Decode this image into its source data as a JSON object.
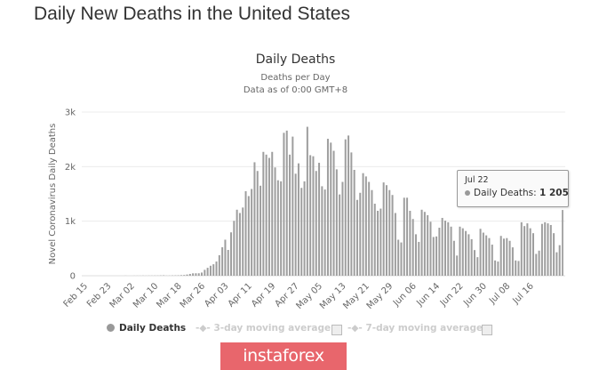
{
  "page_title": "Daily New Deaths in the United States",
  "tooltip": {
    "date": "Jul 22",
    "series": "Daily Deaths",
    "value_text": "1 205"
  },
  "legend": {
    "items": [
      {
        "label": "Daily Deaths",
        "active": true
      },
      {
        "label": "3-day moving average",
        "active": false
      },
      {
        "label": "7-day moving average",
        "active": false
      }
    ]
  },
  "brand": "instaforex",
  "colors": {
    "bar": "#9e9e9e",
    "grid": "#e6e6e6",
    "brand": "#e8666c"
  },
  "chart_data": {
    "type": "bar",
    "title": "Daily Deaths",
    "subtitle": "Deaths per Day",
    "subtitle2": "Data as of 0:00 GMT+8",
    "xlabel": "",
    "ylabel": "Novel Coronavirus Daily Deaths",
    "ylim": [
      0,
      3000
    ],
    "yticks": [
      0,
      1000,
      2000,
      3000
    ],
    "ytick_labels": [
      "0",
      "1k",
      "2k",
      "3k"
    ],
    "grid": true,
    "legend_position": "bottom",
    "xtick_labels": [
      "Feb 15",
      "Feb 23",
      "Mar 02",
      "Mar 10",
      "Mar 18",
      "Mar 26",
      "Apr 03",
      "Apr 11",
      "Apr 19",
      "Apr 27",
      "May 05",
      "May 13",
      "May 21",
      "May 29",
      "Jun 06",
      "Jun 14",
      "Jun 22",
      "Jun 30",
      "Jul 08",
      "Jul 16"
    ],
    "x_start": "Feb 15",
    "x_end": "Jul 22",
    "series": [
      {
        "name": "Daily Deaths",
        "values": [
          0,
          0,
          0,
          0,
          0,
          0,
          0,
          0,
          0,
          0,
          0,
          0,
          0,
          0,
          1,
          0,
          0,
          1,
          1,
          1,
          2,
          1,
          2,
          2,
          3,
          3,
          5,
          7,
          2,
          3,
          5,
          6,
          7,
          11,
          13,
          22,
          33,
          44,
          45,
          45,
          58,
          108,
          145,
          183,
          210,
          260,
          376,
          522,
          660,
          473,
          795,
          1006,
          1210,
          1150,
          1250,
          1549,
          1460,
          1590,
          2080,
          1920,
          1650,
          2270,
          2220,
          2160,
          2270,
          1985,
          1750,
          1730,
          2620,
          2660,
          2220,
          2550,
          1870,
          2060,
          1610,
          1730,
          2730,
          2210,
          2190,
          1920,
          2070,
          1640,
          1580,
          2510,
          2440,
          2290,
          1950,
          1490,
          1720,
          2500,
          2570,
          2260,
          1940,
          1390,
          1520,
          1880,
          1820,
          1720,
          1570,
          1320,
          1190,
          1230,
          1710,
          1660,
          1570,
          1480,
          1150,
          660,
          610,
          1430,
          1430,
          1190,
          1040,
          760,
          620,
          1210,
          1170,
          1110,
          990,
          710,
          720,
          880,
          1060,
          1010,
          980,
          900,
          640,
          370,
          900,
          870,
          820,
          760,
          670,
          470,
          340,
          860,
          790,
          740,
          690,
          570,
          280,
          260,
          730,
          680,
          690,
          640,
          520,
          280,
          270,
          980,
          910,
          960,
          870,
          780,
          400,
          460,
          950,
          980,
          960,
          930,
          780,
          430,
          560,
          1205
        ]
      }
    ],
    "tooltip_point": {
      "x": "Jul 22",
      "y": 1205
    }
  }
}
